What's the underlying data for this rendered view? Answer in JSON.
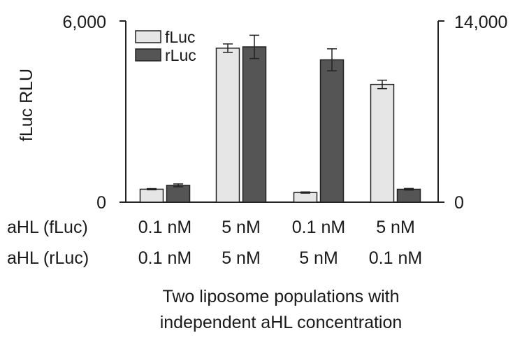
{
  "chart_data": {
    "type": "bar",
    "title": "",
    "ylabel": "fLuc RLU",
    "ylabel_right": "",
    "xlabel_lines": [
      "Two liposome populations with",
      "independent aHL concentration"
    ],
    "ylim": [
      0,
      6000
    ],
    "ylim_right": [
      0,
      14000
    ],
    "yticks_left": [
      "6,000",
      "0"
    ],
    "yticks_right": [
      "14,000",
      "0"
    ],
    "groups": [
      {
        "fluc_label": "0.1 nM",
        "rluc_label": "0.1 nM"
      },
      {
        "fluc_label": "5 nM",
        "rluc_label": "5 nM"
      },
      {
        "fluc_label": "0.1 nM",
        "rluc_label": "5 nM"
      },
      {
        "fluc_label": "5 nM",
        "rluc_label": "0.1 nM"
      }
    ],
    "row_labels": [
      "aHL (fLuc)",
      "aHL (rLuc)"
    ],
    "series": [
      {
        "name": "fLuc",
        "axis": "left",
        "color": "#e6e6e6",
        "values": [
          430,
          5100,
          320,
          3900
        ],
        "errors": [
          20,
          140,
          20,
          140
        ]
      },
      {
        "name": "rLuc",
        "axis": "right",
        "color": "#555555",
        "values": [
          1300,
          12000,
          11000,
          1000
        ],
        "errors": [
          110,
          900,
          850,
          60
        ]
      }
    ],
    "legend_position": "top-left",
    "grid": false
  }
}
